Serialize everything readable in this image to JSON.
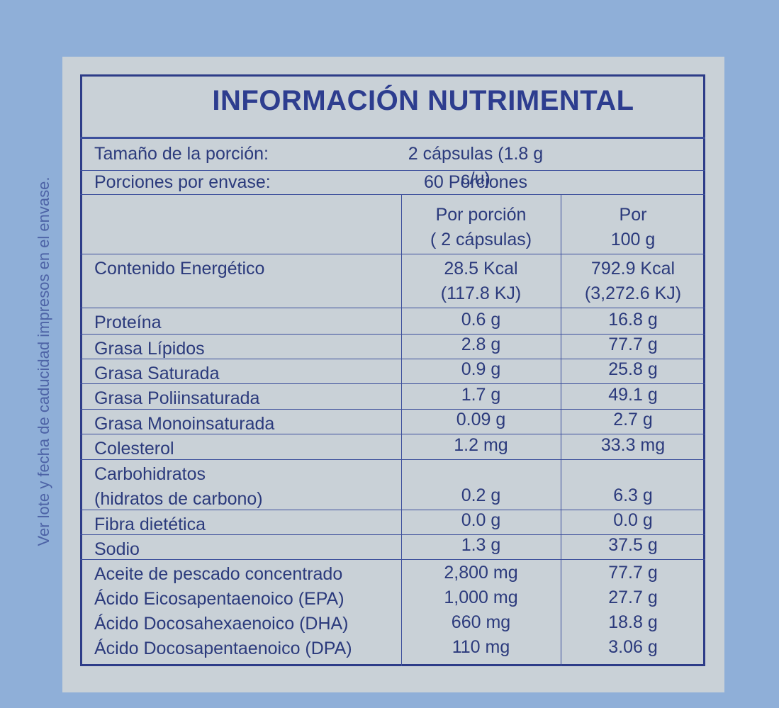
{
  "side_note": "Ver lote y fecha de caducidad impresos en el envase.",
  "header": {
    "title": "INFORMACIÓN NUTRIMENTAL"
  },
  "serving": [
    {
      "label": "Tamaño de la porción:",
      "value": "2 cápsulas (1.8 g c/u)"
    },
    {
      "label": "Porciones por envase:",
      "value": "60 Porciones"
    }
  ],
  "table": {
    "rows": [
      {
        "label": [],
        "per_portion": [
          "Por porción",
          "( 2 cápsulas)"
        ],
        "per_100g": [
          "Por",
          "100 g"
        ]
      },
      {
        "label": [
          "Contenido Energético"
        ],
        "per_portion": [
          "28.5 Kcal",
          "(117.8 KJ)"
        ],
        "per_100g": [
          "792.9 Kcal",
          "(3,272.6 KJ)"
        ]
      },
      {
        "label": [
          "Proteína"
        ],
        "per_portion": [
          "0.6 g"
        ],
        "per_100g": [
          "16.8 g"
        ]
      },
      {
        "label": [
          "Grasa Lípidos"
        ],
        "per_portion": [
          "2.8 g"
        ],
        "per_100g": [
          "77.7 g"
        ]
      },
      {
        "label": [
          "Grasa Saturada"
        ],
        "per_portion": [
          "0.9 g"
        ],
        "per_100g": [
          "25.8 g"
        ]
      },
      {
        "label": [
          "Grasa Poliinsaturada"
        ],
        "per_portion": [
          "1.7 g"
        ],
        "per_100g": [
          "49.1 g"
        ]
      },
      {
        "label": [
          "Grasa Monoinsaturada"
        ],
        "per_portion": [
          "0.09 g"
        ],
        "per_100g": [
          "2.7 g"
        ]
      },
      {
        "label": [
          "Colesterol"
        ],
        "per_portion": [
          "1.2 mg"
        ],
        "per_100g": [
          "33.3 mg"
        ]
      },
      {
        "label": [
          "Carbohidratos",
          "(hidratos de carbono)"
        ],
        "per_portion": [
          "0.2 g"
        ],
        "per_100g": [
          "6.3 g"
        ]
      },
      {
        "label": [
          "Fibra dietética"
        ],
        "per_portion": [
          "0.0 g"
        ],
        "per_100g": [
          "0.0 g"
        ]
      },
      {
        "label": [
          "Sodio"
        ],
        "per_portion": [
          "1.3 g"
        ],
        "per_100g": [
          "37.5 g"
        ]
      },
      {
        "label": [
          "Aceite de pescado concentrado",
          "Ácido Eicosapentaenoico (EPA)",
          "Ácido Docosahexaenoico (DHA)",
          "Ácido Docosapentaenoico (DPA)"
        ],
        "per_portion": [
          "2,800 mg",
          "1,000 mg",
          "660 mg",
          "110 mg"
        ],
        "per_100g": [
          "77.7 g",
          "27.7 g",
          "18.8 g",
          "3.06 g"
        ]
      }
    ]
  }
}
